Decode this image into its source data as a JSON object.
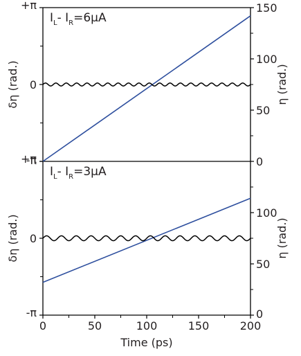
{
  "chart_data": [
    {
      "type": "line",
      "annotation": {
        "main": "I",
        "sub1": "L",
        "mid": "- I",
        "sub2": "R",
        "value": "=6μA"
      },
      "x": {
        "label": "",
        "range": [
          0,
          200
        ],
        "ticks": [],
        "tick_labels": []
      },
      "y_left": {
        "label": "δη (rad.)",
        "range": [
          -3.14159,
          3.14159
        ],
        "ticks": [
          -3.14159,
          0,
          3.14159
        ],
        "tick_labels": [
          "-π",
          "0",
          "+π"
        ]
      },
      "y_right": {
        "label": "η (rad.)",
        "range": [
          0,
          150
        ],
        "ticks": [
          0,
          50,
          100,
          150
        ],
        "tick_labels": [
          "0",
          "50",
          "100",
          "150"
        ]
      },
      "series": [
        {
          "axis": "right",
          "color": "#2e4f9e",
          "kind": "linear",
          "x": [
            0,
            200
          ],
          "y": [
            0,
            142
          ]
        },
        {
          "axis": "left",
          "color": "#000000",
          "kind": "oscillation",
          "center": 0,
          "amplitude": 0.06,
          "cycles": 20,
          "x_range": [
            0,
            200
          ]
        }
      ]
    },
    {
      "type": "line",
      "annotation": {
        "main": "I",
        "sub1": "L",
        "mid": "- I",
        "sub2": "R",
        "value": "=3μA"
      },
      "x": {
        "label": "Time (ps)",
        "range": [
          0,
          200
        ],
        "ticks": [
          0,
          50,
          100,
          150,
          200
        ],
        "tick_labels": [
          "0",
          "50",
          "100",
          "150",
          "200"
        ]
      },
      "y_left": {
        "label": "δη (rad.)",
        "range": [
          -3.14159,
          3.14159
        ],
        "ticks": [
          -3.14159,
          0,
          3.14159
        ],
        "tick_labels": [
          "-π",
          "0",
          "+π"
        ]
      },
      "y_right": {
        "label": "η (rad.)",
        "range": [
          0,
          150
        ],
        "ticks": [
          0,
          50,
          100
        ],
        "tick_labels": [
          "0",
          "50",
          "100"
        ]
      },
      "series": [
        {
          "axis": "right",
          "color": "#2e4f9e",
          "kind": "linear",
          "x": [
            0,
            200
          ],
          "y": [
            32,
            114
          ]
        },
        {
          "axis": "left",
          "color": "#000000",
          "kind": "oscillation",
          "center": 0,
          "amplitude": 0.1,
          "cycles": 14,
          "x_range": [
            0,
            200
          ]
        }
      ]
    }
  ]
}
